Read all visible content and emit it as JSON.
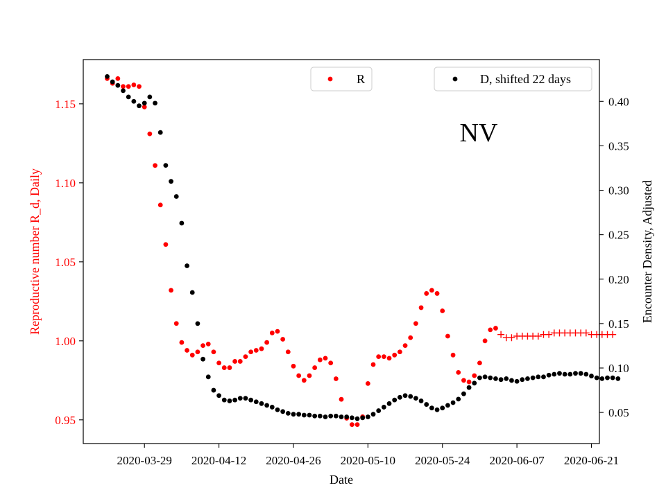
{
  "chart_data": {
    "type": "scatter",
    "state_label": "NV",
    "xlabel": "Date",
    "ylabel_left": "Reproductive number R_d, Daily",
    "ylabel_right": "Encounter Density, Adjusted",
    "x_ticks": [
      "2020-03-29",
      "2020-04-12",
      "2020-04-26",
      "2020-05-10",
      "2020-05-24",
      "2020-06-07",
      "2020-06-21"
    ],
    "x_range_days": [
      -11.5,
      85.5
    ],
    "x_origin_date": "2020-03-29",
    "y_left_ticks": [
      "0.95",
      "1.00",
      "1.05",
      "1.10",
      "1.15"
    ],
    "y_left_range": [
      0.935,
      1.178
    ],
    "y_right_ticks": [
      "0.05",
      "0.10",
      "0.15",
      "0.20",
      "0.25",
      "0.30",
      "0.35",
      "0.40"
    ],
    "y_right_range": [
      0.015,
      0.447
    ],
    "colors": {
      "R": "#ff0000",
      "D": "#000000",
      "left_axis_text": "#ff0000",
      "right_axis_text": "#000000"
    },
    "legend": {
      "R": {
        "label": "R",
        "marker": "dot",
        "color": "#ff0000"
      },
      "D": {
        "label": "D, shifted 22 days",
        "marker": "dot",
        "color": "#000000"
      }
    },
    "series": [
      {
        "name": "R",
        "axis": "left",
        "marker": "dot",
        "color": "#ff0000",
        "x_start_day": -7,
        "values": [
          1.166,
          1.163,
          1.166,
          1.161,
          1.161,
          1.162,
          1.161,
          1.148,
          1.131,
          1.111,
          1.086,
          1.061,
          1.032,
          1.011,
          0.999,
          0.994,
          0.991,
          0.993,
          0.997,
          0.998,
          0.993,
          0.986,
          0.983,
          0.983,
          0.987,
          0.987,
          0.99,
          0.993,
          0.994,
          0.995,
          0.999,
          1.005,
          1.006,
          1.001,
          0.993,
          0.984,
          0.978,
          0.975,
          0.978,
          0.983,
          0.988,
          0.989,
          0.986,
          0.976,
          0.963,
          0.951,
          0.947,
          0.947,
          0.952,
          0.973,
          0.985,
          0.99,
          0.99,
          0.989,
          0.991,
          0.993,
          0.997,
          1.002,
          1.011,
          1.021,
          1.03,
          1.032,
          1.03,
          1.019,
          1.003,
          0.991,
          0.98,
          0.975,
          0.974,
          0.978,
          0.986,
          1.0,
          1.007,
          1.008
        ]
      },
      {
        "name": "R_projected",
        "axis": "left",
        "marker": "plus",
        "color": "#ff0000",
        "x_start_day": 67,
        "values": [
          1.004,
          1.002,
          1.002,
          1.003,
          1.003,
          1.003,
          1.003,
          1.003,
          1.004,
          1.004,
          1.005,
          1.005,
          1.005,
          1.005,
          1.005,
          1.005,
          1.005,
          1.004,
          1.004,
          1.004,
          1.004,
          1.004
        ]
      },
      {
        "name": "D, shifted 22 days",
        "axis": "right",
        "marker": "dot",
        "color": "#000000",
        "x_start_day": -7,
        "values": [
          0.428,
          0.422,
          0.418,
          0.412,
          0.405,
          0.4,
          0.395,
          0.398,
          0.405,
          0.398,
          0.365,
          0.328,
          0.31,
          0.293,
          0.263,
          0.215,
          0.185,
          0.15,
          0.11,
          0.09,
          0.075,
          0.069,
          0.064,
          0.063,
          0.064,
          0.066,
          0.066,
          0.064,
          0.062,
          0.06,
          0.058,
          0.056,
          0.053,
          0.051,
          0.049,
          0.048,
          0.048,
          0.047,
          0.047,
          0.046,
          0.046,
          0.045,
          0.046,
          0.046,
          0.045,
          0.045,
          0.044,
          0.043,
          0.044,
          0.045,
          0.048,
          0.052,
          0.056,
          0.06,
          0.064,
          0.067,
          0.069,
          0.068,
          0.066,
          0.063,
          0.059,
          0.055,
          0.053,
          0.055,
          0.058,
          0.061,
          0.065,
          0.071,
          0.078,
          0.083,
          0.089,
          0.09,
          0.089,
          0.088,
          0.087,
          0.088,
          0.086,
          0.085,
          0.087,
          0.088,
          0.089,
          0.09,
          0.09,
          0.092,
          0.093,
          0.094,
          0.093,
          0.093,
          0.094,
          0.094,
          0.093,
          0.091,
          0.089,
          0.088,
          0.089,
          0.089,
          0.088
        ]
      }
    ]
  }
}
